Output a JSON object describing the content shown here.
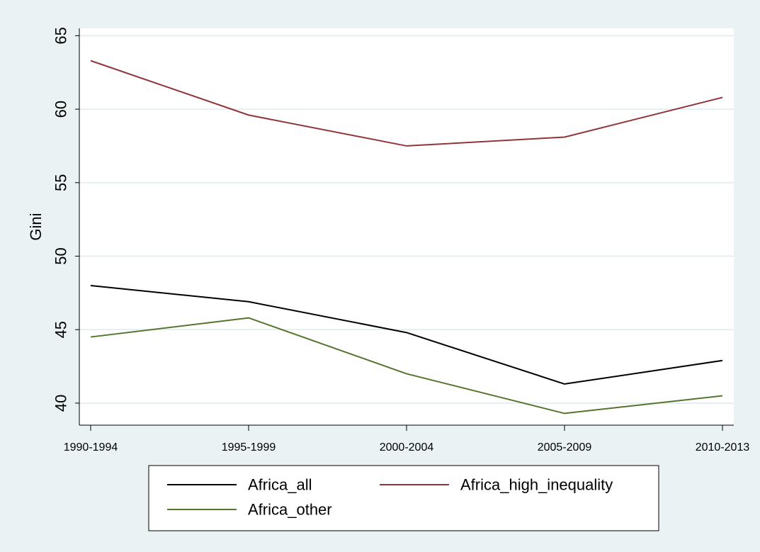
{
  "chart_data": {
    "type": "line",
    "title": "",
    "xlabel": "",
    "ylabel": "Gini",
    "categories": [
      "1990-1994",
      "1995-1999",
      "2000-2004",
      "2005-2009",
      "2010-2013"
    ],
    "ylim": [
      38.5,
      65.5
    ],
    "yticks": [
      40,
      45,
      50,
      55,
      60,
      65
    ],
    "grid": true,
    "legend_position": "bottom",
    "series": [
      {
        "name": "Africa_all",
        "color": "#000000",
        "values": [
          48.0,
          46.9,
          44.8,
          41.3,
          42.9
        ]
      },
      {
        "name": "Africa_high_inequality",
        "color": "#90353b",
        "values": [
          63.3,
          59.6,
          57.5,
          58.1,
          60.8
        ]
      },
      {
        "name": "Africa_other",
        "color": "#55752f",
        "values": [
          44.5,
          45.8,
          42.0,
          39.3,
          40.5
        ]
      }
    ]
  }
}
